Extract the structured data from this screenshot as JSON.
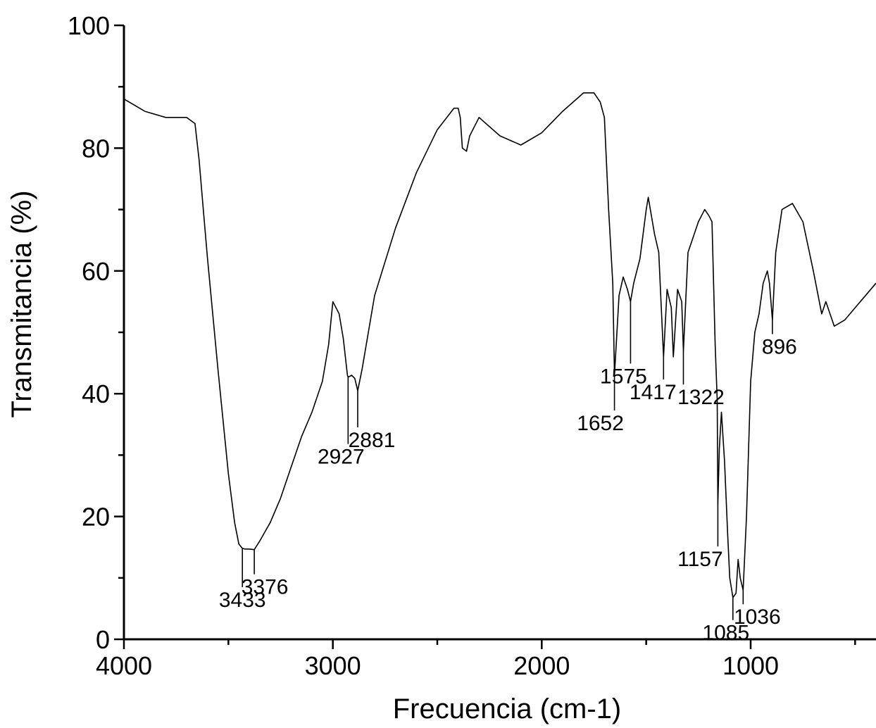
{
  "chart_data": {
    "type": "line",
    "title": "",
    "xlabel": "Frecuencia (cm-1)",
    "ylabel": "Transmitancia (%)",
    "xlim": [
      4000,
      400
    ],
    "ylim": [
      0,
      100
    ],
    "x_reversed": true,
    "xticks": [
      {
        "value": 4000,
        "label": "4000"
      },
      {
        "value": 3000,
        "label": "3000"
      },
      {
        "value": 2000,
        "label": "2000"
      },
      {
        "value": 1000,
        "label": "1000"
      }
    ],
    "yticks": [
      {
        "value": 0,
        "label": "0"
      },
      {
        "value": 20,
        "label": "20"
      },
      {
        "value": 40,
        "label": "40"
      },
      {
        "value": 60,
        "label": "60"
      },
      {
        "value": 80,
        "label": "80"
      },
      {
        "value": 100,
        "label": "100"
      }
    ],
    "grid": false,
    "series": [
      {
        "x": [
          4000,
          3900,
          3800,
          3700,
          3660,
          3640,
          3620,
          3600,
          3550,
          3500,
          3470,
          3450,
          3433,
          3420,
          3400,
          3376,
          3350,
          3300,
          3250,
          3200,
          3150,
          3100,
          3050,
          3020,
          3000,
          2970,
          2950,
          2930,
          2927,
          2910,
          2895,
          2881,
          2860,
          2800,
          2700,
          2600,
          2500,
          2420,
          2400,
          2390,
          2380,
          2360,
          2345,
          2300,
          2200,
          2100,
          2000,
          1900,
          1800,
          1750,
          1720,
          1700,
          1680,
          1660,
          1652,
          1630,
          1610,
          1590,
          1575,
          1560,
          1530,
          1500,
          1490,
          1460,
          1440,
          1425,
          1417,
          1400,
          1380,
          1370,
          1350,
          1330,
          1322,
          1300,
          1280,
          1250,
          1220,
          1200,
          1185,
          1170,
          1160,
          1157,
          1150,
          1140,
          1125,
          1110,
          1100,
          1085,
          1070,
          1060,
          1050,
          1036,
          1020,
          1000,
          980,
          960,
          940,
          920,
          910,
          896,
          880,
          850,
          800,
          750,
          700,
          660,
          640,
          620,
          600,
          550,
          500,
          450,
          400
        ],
        "y": [
          88,
          86,
          85,
          85,
          84,
          78,
          70,
          62,
          44,
          27,
          19,
          15.5,
          14.8,
          14.7,
          14.7,
          14.6,
          16,
          19,
          23,
          28,
          33,
          37,
          42,
          48,
          55,
          53,
          49,
          43,
          42.7,
          43,
          42.5,
          40.5,
          44,
          56,
          67,
          76,
          83,
          86.5,
          86.5,
          85,
          80,
          79.5,
          82,
          85,
          82,
          80.5,
          82.5,
          86,
          89,
          89,
          87.5,
          85,
          70,
          58,
          43,
          56,
          59,
          57,
          55,
          58,
          62,
          70,
          72,
          66,
          63,
          52,
          46,
          57,
          54,
          46,
          57,
          55,
          47,
          63,
          65,
          68,
          70,
          69,
          68,
          48,
          39,
          22,
          31,
          37,
          29,
          17,
          10,
          6.8,
          7.5,
          13,
          10,
          8,
          20,
          42,
          50,
          53,
          58,
          60,
          58,
          52,
          63,
          70,
          71,
          68,
          60,
          53,
          55,
          53,
          51,
          52,
          54,
          56,
          58
        ]
      }
    ],
    "peak_labels": [
      {
        "x": 3433,
        "y": 14.8,
        "label": "3433"
      },
      {
        "x": 3376,
        "y": 14.6,
        "label": "3376"
      },
      {
        "x": 2927,
        "y": 42.7,
        "label": "2927"
      },
      {
        "x": 2881,
        "y": 40.5,
        "label": "2881"
      },
      {
        "x": 1652,
        "y": 43,
        "label": "1652"
      },
      {
        "x": 1575,
        "y": 55,
        "label": "1575"
      },
      {
        "x": 1417,
        "y": 46,
        "label": "1417"
      },
      {
        "x": 1322,
        "y": 47,
        "label": "1322"
      },
      {
        "x": 1157,
        "y": 22,
        "label": "1157"
      },
      {
        "x": 1085,
        "y": 6.8,
        "label": "1085"
      },
      {
        "x": 1036,
        "y": 8,
        "label": "1036"
      },
      {
        "x": 896,
        "y": 52,
        "label": "896"
      }
    ]
  }
}
